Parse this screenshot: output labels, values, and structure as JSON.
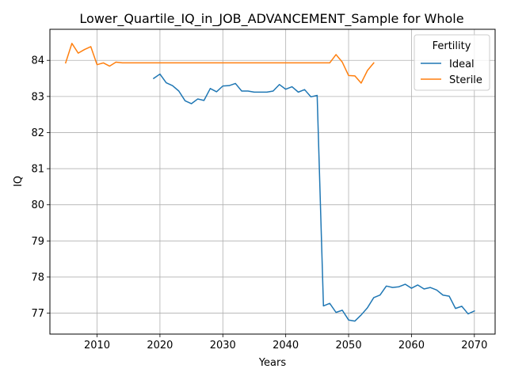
{
  "chart_data": {
    "type": "line",
    "title": "Lower_Quartile_IQ_in_JOB_ADVANCEMENT_Sample for Whole",
    "xlabel": "Years",
    "ylabel": "IQ",
    "xlim": [
      2002.5,
      2073.3
    ],
    "ylim": [
      76.42,
      84.86
    ],
    "xticks": [
      2010,
      2020,
      2030,
      2040,
      2050,
      2060,
      2070
    ],
    "yticks": [
      77,
      78,
      79,
      80,
      81,
      82,
      83,
      84
    ],
    "grid": true,
    "legend": {
      "title": "Fertility",
      "placement": "top-right"
    },
    "series": [
      {
        "name": "Ideal",
        "color": "#1f77b4",
        "x": [
          2019,
          2020,
          2021,
          2022,
          2023,
          2024,
          2025,
          2026,
          2027,
          2028,
          2029,
          2030,
          2031,
          2032,
          2033,
          2034,
          2035,
          2036,
          2037,
          2038,
          2039,
          2040,
          2041,
          2042,
          2043,
          2044,
          2045,
          2046,
          2047,
          2048,
          2049,
          2050,
          2051,
          2052,
          2053,
          2054,
          2055,
          2056,
          2057,
          2058,
          2059,
          2060,
          2061,
          2062,
          2063,
          2064,
          2065,
          2066,
          2067,
          2068,
          2069,
          2070
        ],
        "y": [
          83.5,
          83.62,
          83.38,
          83.3,
          83.15,
          82.88,
          82.8,
          82.93,
          82.89,
          83.22,
          83.13,
          83.29,
          83.3,
          83.36,
          83.15,
          83.15,
          83.12,
          83.12,
          83.12,
          83.15,
          83.33,
          83.2,
          83.27,
          83.12,
          83.19,
          82.99,
          83.03,
          77.2,
          77.27,
          77.02,
          77.08,
          76.81,
          76.78,
          76.95,
          77.15,
          77.43,
          77.5,
          77.75,
          77.71,
          77.73,
          77.8,
          77.69,
          77.78,
          77.67,
          77.71,
          77.64,
          77.5,
          77.47,
          77.13,
          77.19,
          76.98,
          77.06
        ]
      },
      {
        "name": "Sterile",
        "color": "#ff7f0e",
        "x": [
          2005,
          2006,
          2007,
          2008,
          2009,
          2010,
          2011,
          2012,
          2013,
          2014,
          2015,
          2016,
          2017,
          2018,
          2019,
          2020,
          2021,
          2022,
          2023,
          2024,
          2025,
          2026,
          2027,
          2028,
          2029,
          2030,
          2031,
          2032,
          2033,
          2034,
          2035,
          2036,
          2037,
          2038,
          2039,
          2040,
          2041,
          2042,
          2043,
          2044,
          2045,
          2046,
          2047,
          2048,
          2049,
          2050,
          2051,
          2052,
          2053,
          2054
        ],
        "y": [
          83.93,
          84.47,
          84.2,
          84.3,
          84.38,
          83.88,
          83.93,
          83.84,
          83.95,
          83.93,
          83.93,
          83.93,
          83.93,
          83.93,
          83.93,
          83.93,
          83.93,
          83.93,
          83.93,
          83.93,
          83.93,
          83.93,
          83.93,
          83.93,
          83.93,
          83.93,
          83.93,
          83.93,
          83.93,
          83.93,
          83.93,
          83.93,
          83.93,
          83.93,
          83.93,
          83.93,
          83.93,
          83.93,
          83.93,
          83.93,
          83.93,
          83.93,
          83.93,
          84.16,
          83.95,
          83.58,
          83.57,
          83.37,
          83.72,
          83.93
        ]
      }
    ]
  }
}
